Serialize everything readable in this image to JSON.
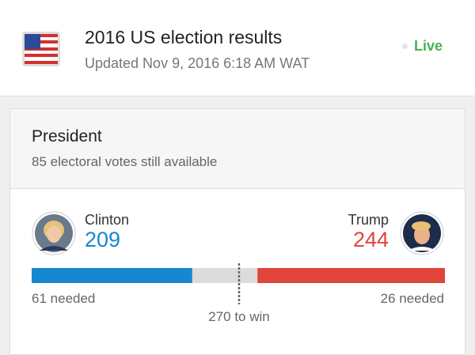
{
  "header": {
    "title": "2016 US election results",
    "updated": "Updated Nov 9, 2016 6:18 AM WAT",
    "status": "Live"
  },
  "card": {
    "title": "President",
    "available": {
      "count": 85,
      "label": "electoral votes still available"
    },
    "candidates": [
      {
        "name": "Clinton",
        "votes": 209,
        "needed": {
          "count": 61,
          "label": "needed"
        },
        "color": "#1787d2"
      },
      {
        "name": "Trump",
        "votes": 244,
        "needed": {
          "count": 26,
          "label": "needed"
        },
        "color": "#e0443a"
      }
    ],
    "threshold": {
      "count": 270,
      "label": "to win"
    }
  }
}
